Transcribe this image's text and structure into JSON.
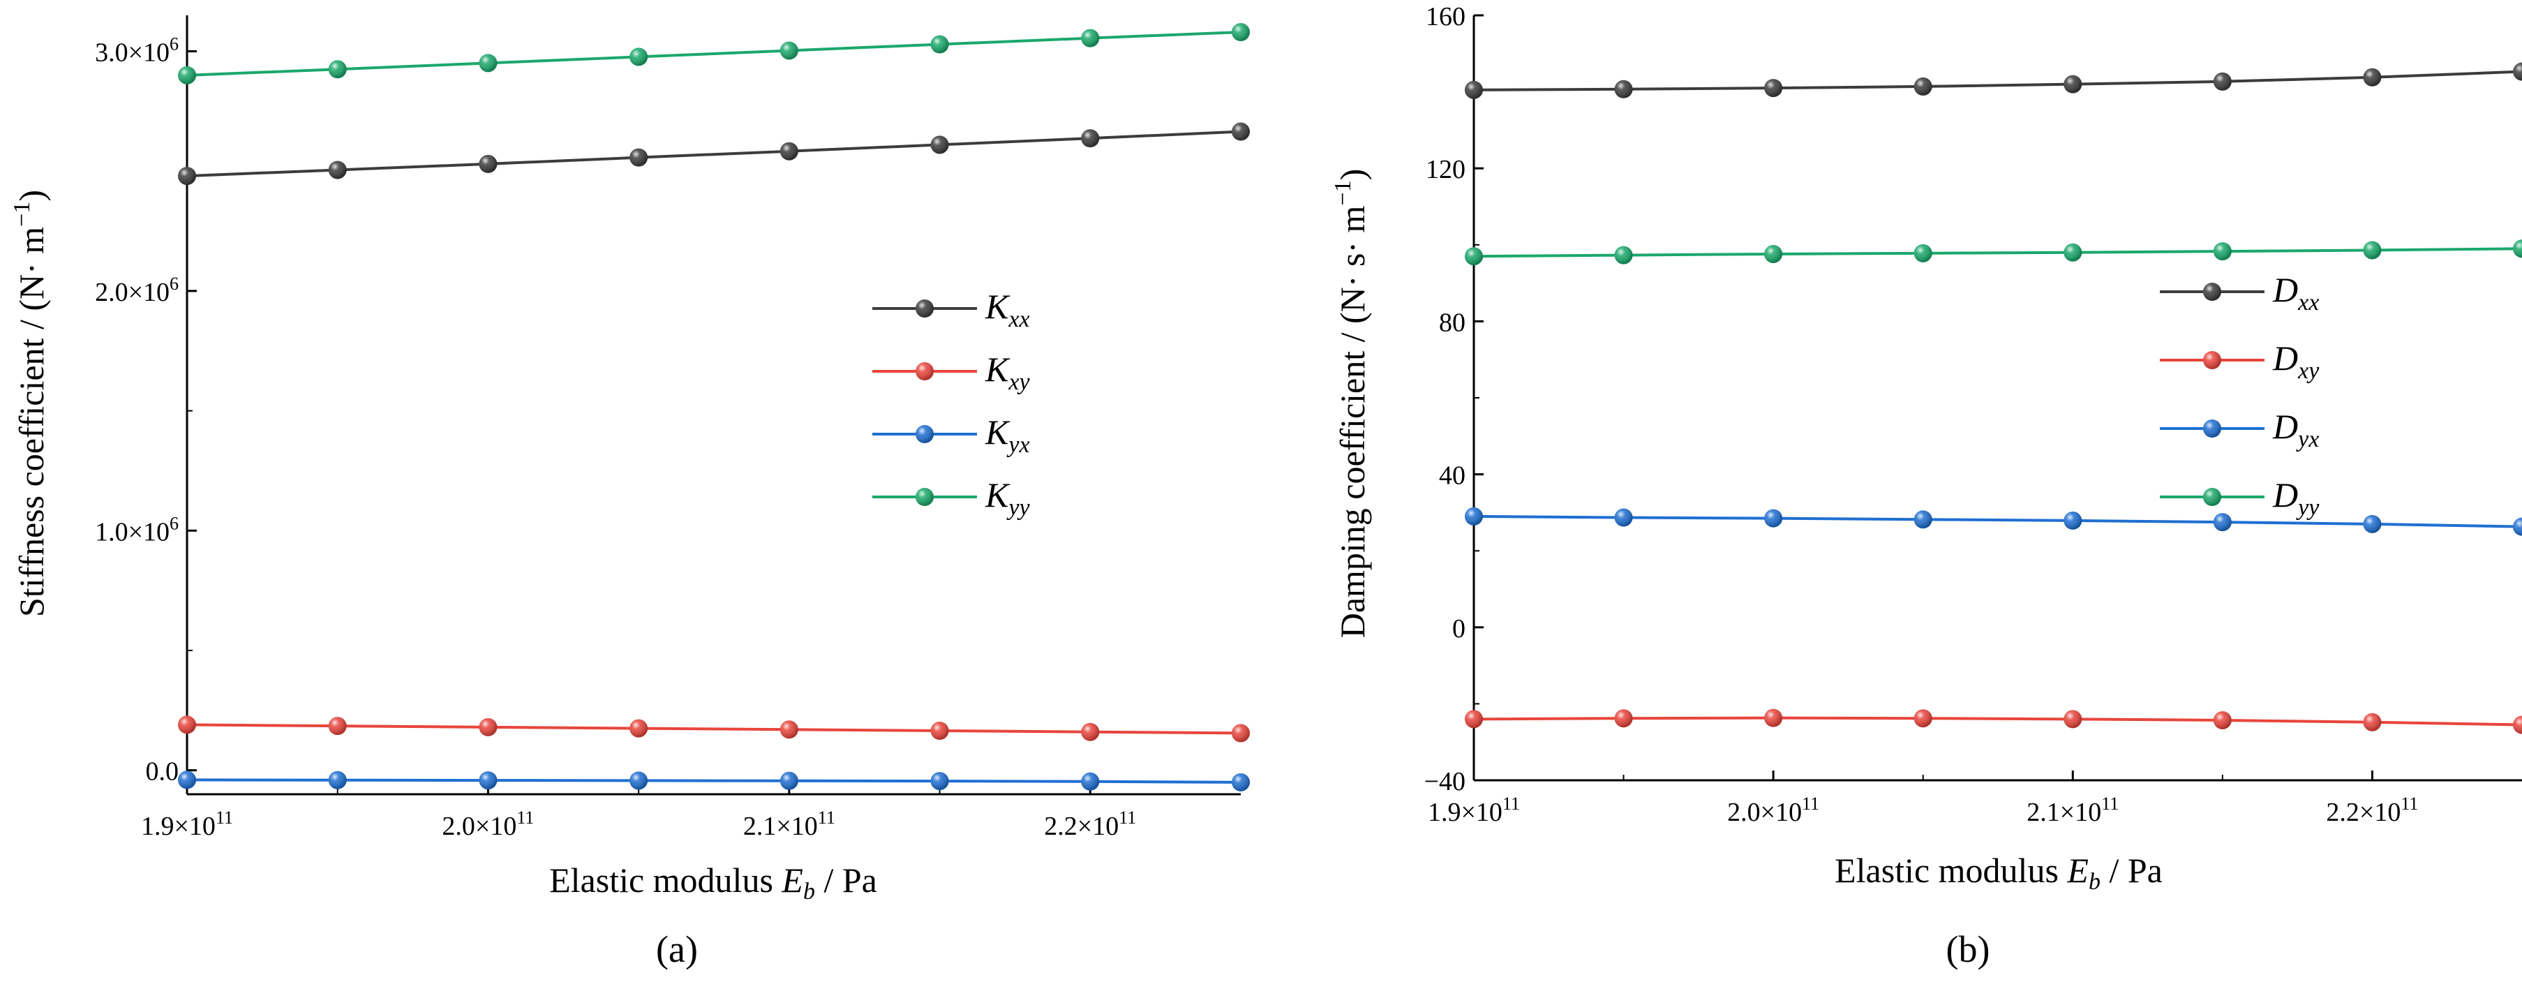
{
  "figure": {
    "panel_labels": [
      "(a)",
      "(b)"
    ]
  },
  "chart_data": [
    {
      "type": "line",
      "panel": "(a)",
      "title": "",
      "xlabel": "Elastic modulus E_b / Pa",
      "ylabel": "Stiffness coefficient / (N· m^-1)",
      "xlim": [
        190000000000.0,
        225000000000.0
      ],
      "ylim": [
        -100000.0,
        3150000.0
      ],
      "x_ticks": [
        {
          "value": 190000000000.0,
          "mantissa": "1.9",
          "exponent": "11"
        },
        {
          "value": 200000000000.0,
          "mantissa": "2.0",
          "exponent": "11"
        },
        {
          "value": 210000000000.0,
          "mantissa": "2.1",
          "exponent": "11"
        },
        {
          "value": 220000000000.0,
          "mantissa": "2.2",
          "exponent": "11"
        }
      ],
      "y_ticks": [
        {
          "value": 0,
          "mantissa": "0.0",
          "exponent": ""
        },
        {
          "value": 1000000.0,
          "mantissa": "1.0",
          "exponent": "6"
        },
        {
          "value": 2000000.0,
          "mantissa": "2.0",
          "exponent": "6"
        },
        {
          "value": 3000000.0,
          "mantissa": "3.0",
          "exponent": "6"
        }
      ],
      "legend_position": "center-right",
      "x": [
        190000000000.0,
        195000000000.0,
        200000000000.0,
        205000000000.0,
        210000000000.0,
        215000000000.0,
        220000000000.0,
        225000000000.0
      ],
      "series": [
        {
          "name": "Kxx",
          "symbol": "K",
          "subscript": "xx",
          "color": "#3c3c3c",
          "values": [
            2480000.0,
            2505000.0,
            2530000.0,
            2557000.0,
            2583000.0,
            2610000.0,
            2637000.0,
            2665000.0
          ]
        },
        {
          "name": "Kxy",
          "symbol": "K",
          "subscript": "xy",
          "color": "#e8453c",
          "values": [
            190000.0,
            185000.0,
            180000.0,
            175000.0,
            170000.0,
            165000.0,
            160000.0,
            155000.0
          ]
        },
        {
          "name": "Kyx",
          "symbol": "K",
          "subscript": "yx",
          "color": "#1f6fd1",
          "values": [
            -40000.0,
            -41000.0,
            -42000.0,
            -43000.0,
            -44000.0,
            -45000.0,
            -47000.0,
            -50000.0
          ]
        },
        {
          "name": "Kyy",
          "symbol": "K",
          "subscript": "yy",
          "color": "#1aa86b",
          "values": [
            2900000.0,
            2925000.0,
            2951000.0,
            2977000.0,
            3003000.0,
            3029000.0,
            3055000.0,
            3080000.0
          ]
        }
      ]
    },
    {
      "type": "line",
      "panel": "(b)",
      "title": "",
      "xlabel": "Elastic modulus E_b / Pa",
      "ylabel": "Damping coefficient / (N· s· m^-1)",
      "xlim": [
        190000000000.0,
        225000000000.0
      ],
      "ylim": [
        -40,
        160
      ],
      "x_ticks": [
        {
          "value": 190000000000.0,
          "mantissa": "1.9",
          "exponent": "11"
        },
        {
          "value": 200000000000.0,
          "mantissa": "2.0",
          "exponent": "11"
        },
        {
          "value": 210000000000.0,
          "mantissa": "2.1",
          "exponent": "11"
        },
        {
          "value": 220000000000.0,
          "mantissa": "2.2",
          "exponent": "11"
        }
      ],
      "y_ticks": [
        {
          "value": -40,
          "mantissa": "−40",
          "exponent": ""
        },
        {
          "value": 0,
          "mantissa": "0",
          "exponent": ""
        },
        {
          "value": 40,
          "mantissa": "40",
          "exponent": ""
        },
        {
          "value": 80,
          "mantissa": "80",
          "exponent": ""
        },
        {
          "value": 120,
          "mantissa": "120",
          "exponent": ""
        },
        {
          "value": 160,
          "mantissa": "160",
          "exponent": ""
        }
      ],
      "legend_position": "center-right",
      "x": [
        190000000000.0,
        195000000000.0,
        200000000000.0,
        205000000000.0,
        210000000000.0,
        215000000000.0,
        220000000000.0,
        225000000000.0
      ],
      "series": [
        {
          "name": "Dxx",
          "symbol": "D",
          "subscript": "xx",
          "color": "#3c3c3c",
          "values": [
            140.5,
            140.7,
            141.0,
            141.4,
            142.0,
            142.7,
            143.8,
            145.3
          ]
        },
        {
          "name": "Dxy",
          "symbol": "D",
          "subscript": "xy",
          "color": "#e8453c",
          "values": [
            -24.0,
            -23.8,
            -23.7,
            -23.8,
            -24.0,
            -24.3,
            -24.8,
            -25.5
          ]
        },
        {
          "name": "Dyx",
          "symbol": "D",
          "subscript": "yx",
          "color": "#1f6fd1",
          "values": [
            29.0,
            28.7,
            28.5,
            28.2,
            27.9,
            27.5,
            27.0,
            26.3
          ]
        },
        {
          "name": "Dyy",
          "symbol": "D",
          "subscript": "yy",
          "color": "#1aa86b",
          "values": [
            97.0,
            97.3,
            97.6,
            97.8,
            98.0,
            98.3,
            98.6,
            99.0
          ]
        }
      ]
    }
  ]
}
